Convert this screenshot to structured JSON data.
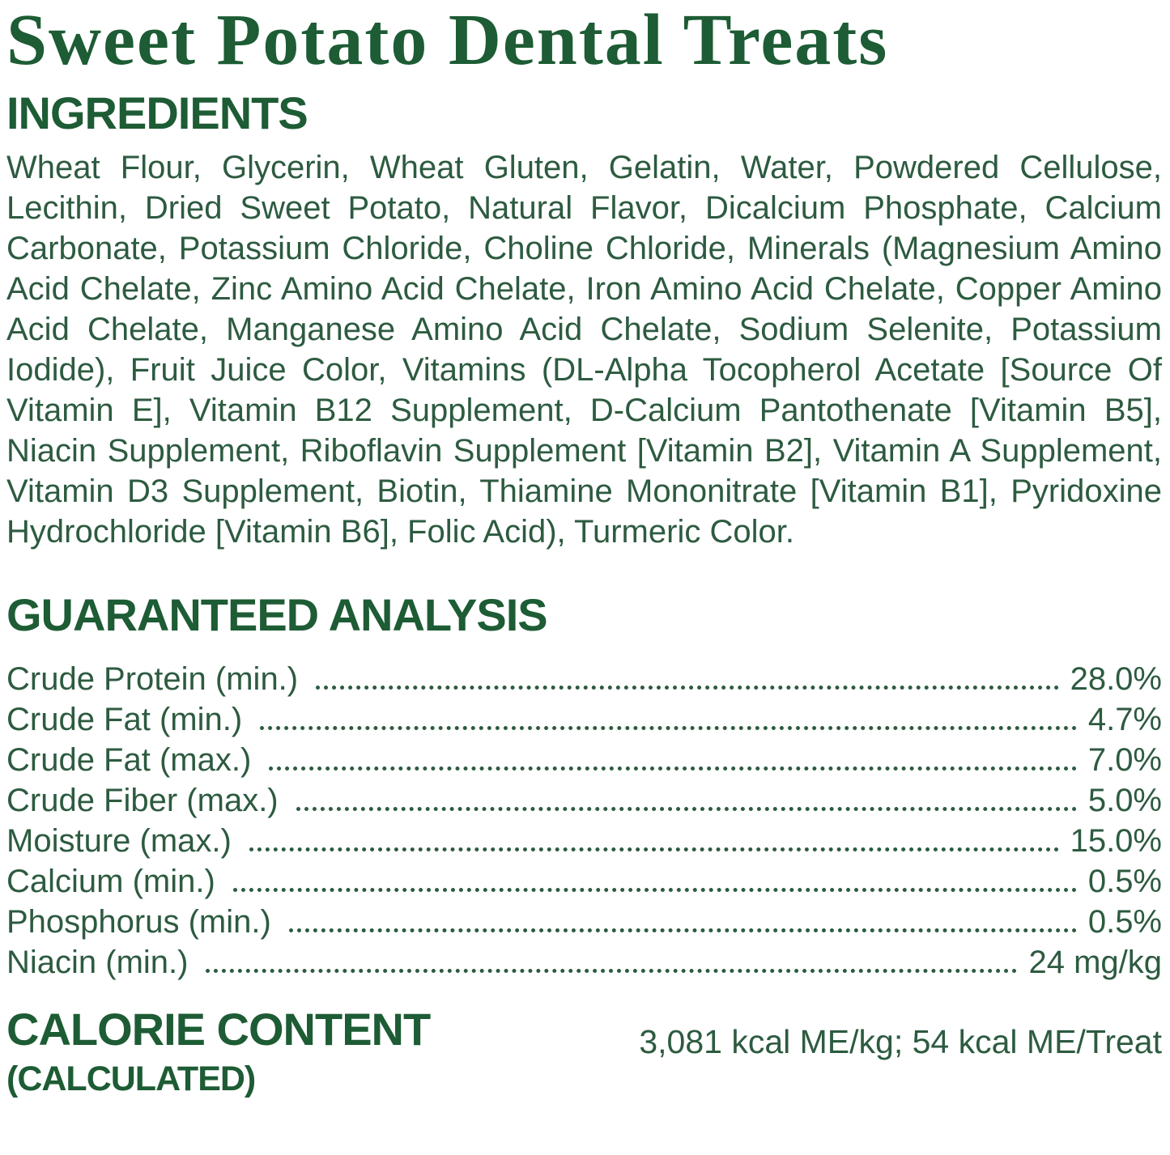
{
  "label": {
    "title": "Sweet Potato Dental Treats",
    "ingredients": {
      "heading": "INGREDIENTS",
      "text": "Wheat Flour, Glycerin, Wheat Gluten, Gelatin, Water, Powdered Cellulose, Lecithin, Dried Sweet Potato, Natural Flavor, Dicalcium Phosphate, Calcium Carbonate, Potassium Chloride, Choline Chloride, Minerals (Magnesium Amino Acid Chelate, Zinc Amino Acid Chelate, Iron Amino Acid Chelate, Copper Amino Acid Chelate, Manganese Amino Acid Chelate, Sodium Selenite, Potassium Iodide), Fruit Juice Color, Vitamins (DL-Alpha Tocopherol Acetate [Source Of Vitamin E], Vitamin B12 Supplement, D-Calcium Pantothenate [Vitamin B5], Niacin Supplement, Riboflavin Supplement [Vitamin B2], Vitamin A Supplement, Vitamin D3 Supplement, Biotin, Thiamine Mononitrate [Vitamin B1], Pyridoxine Hydrochloride [Vitamin B6], Folic Acid), Turmeric Color."
    },
    "guaranteed_analysis": {
      "heading": "GUARANTEED ANALYSIS",
      "rows": [
        {
          "label": "Crude Protein (min.)",
          "value": "28.0%"
        },
        {
          "label": "Crude Fat (min.)",
          "value": "4.7%"
        },
        {
          "label": "Crude Fat (max.)",
          "value": "7.0%"
        },
        {
          "label": "Crude Fiber (max.)",
          "value": "5.0%"
        },
        {
          "label": "Moisture (max.)",
          "value": "15.0%"
        },
        {
          "label": "Calcium (min.)",
          "value": "0.5%"
        },
        {
          "label": "Phosphorus (min.)",
          "value": "0.5%"
        },
        {
          "label": "Niacin (min.)",
          "value": "24 mg/kg"
        }
      ]
    },
    "calorie_content": {
      "heading": "CALORIE CONTENT",
      "subheading": "(CALCULATED)",
      "value": "3,081 kcal ME/kg; 54 kcal ME/Treat"
    },
    "colors": {
      "heading_green": "#1d5c34",
      "body_green": "#2d5b40",
      "background": "#ffffff"
    }
  }
}
